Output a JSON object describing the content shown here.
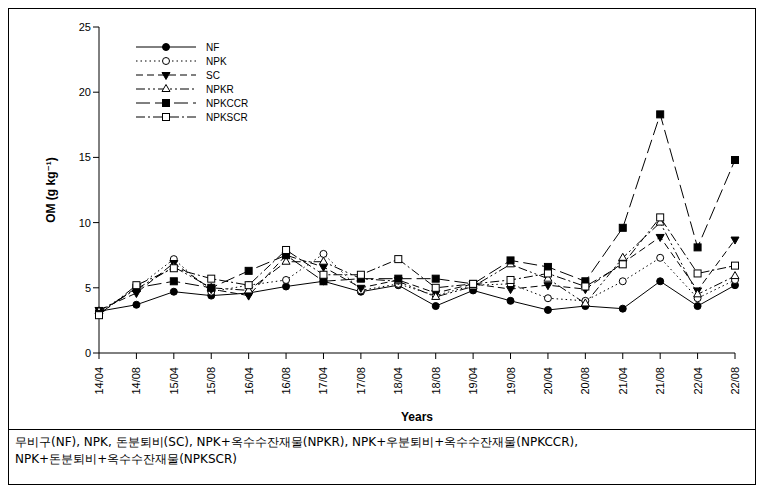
{
  "chart_data": {
    "type": "line",
    "y_label": "OM (g kg⁻¹)",
    "x_label": "Years",
    "categories": [
      "14/04",
      "14/08",
      "15/04",
      "15/08",
      "16/04",
      "16/08",
      "17/04",
      "17/08",
      "18/04",
      "18/08",
      "19/04",
      "19/08",
      "20/04",
      "20/08",
      "21/04",
      "21/08",
      "22/04",
      "22/08"
    ],
    "ylim": [
      0,
      25
    ],
    "yticks": [
      0,
      5,
      10,
      15,
      20,
      25
    ],
    "grid": false,
    "legend": "upper left",
    "series": [
      {
        "name": "NF",
        "color": "#000000",
        "marker": "circle",
        "line_style": "solid",
        "values": [
          3.2,
          3.7,
          4.7,
          4.4,
          4.6,
          5.1,
          5.5,
          4.7,
          5.2,
          3.6,
          4.8,
          4.0,
          3.3,
          3.6,
          3.4,
          5.5,
          3.6,
          5.2
        ]
      },
      {
        "name": "NPK",
        "color": "#000000",
        "marker": "circle_open",
        "line_style": "dotted",
        "values": [
          3.1,
          5.0,
          7.2,
          4.7,
          5.2,
          5.6,
          7.6,
          4.8,
          5.3,
          4.4,
          5.2,
          5.3,
          4.2,
          4.0,
          5.5,
          7.3,
          4.2,
          5.6
        ]
      },
      {
        "name": "SC",
        "color": "#000000",
        "marker": "triangle_down",
        "line_style": "dashed",
        "values": [
          3.3,
          4.6,
          6.9,
          4.9,
          4.4,
          7.5,
          6.6,
          5.0,
          5.6,
          4.6,
          5.3,
          4.9,
          5.2,
          4.9,
          6.9,
          8.9,
          4.8,
          8.7
        ]
      },
      {
        "name": "NPKR",
        "color": "#000000",
        "marker": "triangle_open",
        "line_style": "dashdotdot",
        "values": [
          3.2,
          4.9,
          6.6,
          5.0,
          4.8,
          7.0,
          7.0,
          5.7,
          5.5,
          4.3,
          5.1,
          6.8,
          5.7,
          3.8,
          7.3,
          10.0,
          4.5,
          5.9
        ]
      },
      {
        "name": "NPKCCR",
        "color": "#000000",
        "marker": "square",
        "line_style": "longdash",
        "values": [
          3.0,
          5.0,
          5.5,
          5.0,
          6.3,
          7.5,
          5.5,
          5.7,
          5.7,
          5.7,
          5.3,
          7.1,
          6.6,
          5.5,
          9.6,
          18.3,
          8.1,
          14.8
        ]
      },
      {
        "name": "NPKSCR",
        "color": "#000000",
        "marker": "square_open",
        "line_style": "dashdot",
        "values": [
          2.9,
          5.2,
          6.5,
          5.7,
          5.2,
          7.9,
          6.0,
          6.0,
          7.2,
          5.0,
          5.3,
          5.6,
          6.1,
          5.1,
          6.8,
          10.4,
          6.1,
          6.7
        ]
      }
    ],
    "caption": [
      "무비구(NF), NPK, 돈분퇴비(SC), NPK+옥수수잔재물(NPKR), NPK+우분퇴비+옥수수잔재물(NPKCCR),",
      "NPK+돈분퇴비+옥수수잔재물(NPKSCR)"
    ]
  }
}
